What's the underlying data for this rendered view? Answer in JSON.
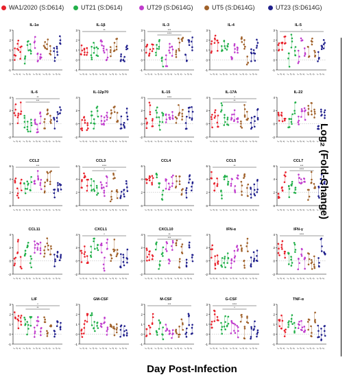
{
  "legend": [
    {
      "name": "WA1/2020 (S:D614)",
      "color": "#e8212b"
    },
    {
      "name": "UT21 (S:D614)",
      "color": "#22b04a"
    },
    {
      "name": "UT29 (S:D614G)",
      "color": "#c03ccd"
    },
    {
      "name": "UT5 (S:D614G)",
      "color": "#a0612a"
    },
    {
      "name": "UT23 (S:D614G)",
      "color": "#1f1f8c"
    }
  ],
  "y_axis_label": "Log₂ (Fold-Change)",
  "x_axis_label": "Day Post-Infection",
  "chart_data": {
    "type": "scatter",
    "panel_titles": [
      "IL-1α",
      "IL-1β",
      "IL-3",
      "IL-4",
      "IL-5",
      "IL-6",
      "IL-12p70",
      "IL-15",
      "IL-17A",
      "IL-22",
      "CCL2",
      "CCL3",
      "CCL4",
      "CCL5",
      "CCL7",
      "CCL11",
      "CXCL1",
      "CXCL10",
      "IFN-α",
      "IFN-γ",
      "LIF",
      "GM-CSF",
      "M-CSF",
      "G-CSF",
      "TNF-α"
    ],
    "tick_label_rows": [
      [
        "-1",
        "0",
        "1",
        "2",
        "3"
      ],
      [
        "-2",
        "0",
        "2",
        "4"
      ],
      [
        "0",
        "2",
        "4",
        "6"
      ],
      [
        "-2",
        "0",
        "2",
        "4"
      ],
      [
        "-1",
        "0",
        "1",
        "2",
        "3"
      ]
    ],
    "x_tick_labels": [
      "1",
      "3",
      "5"
    ],
    "significance_labels": [
      "*",
      "**",
      "***",
      "****"
    ],
    "legend_placement": "top",
    "grid": false
  }
}
